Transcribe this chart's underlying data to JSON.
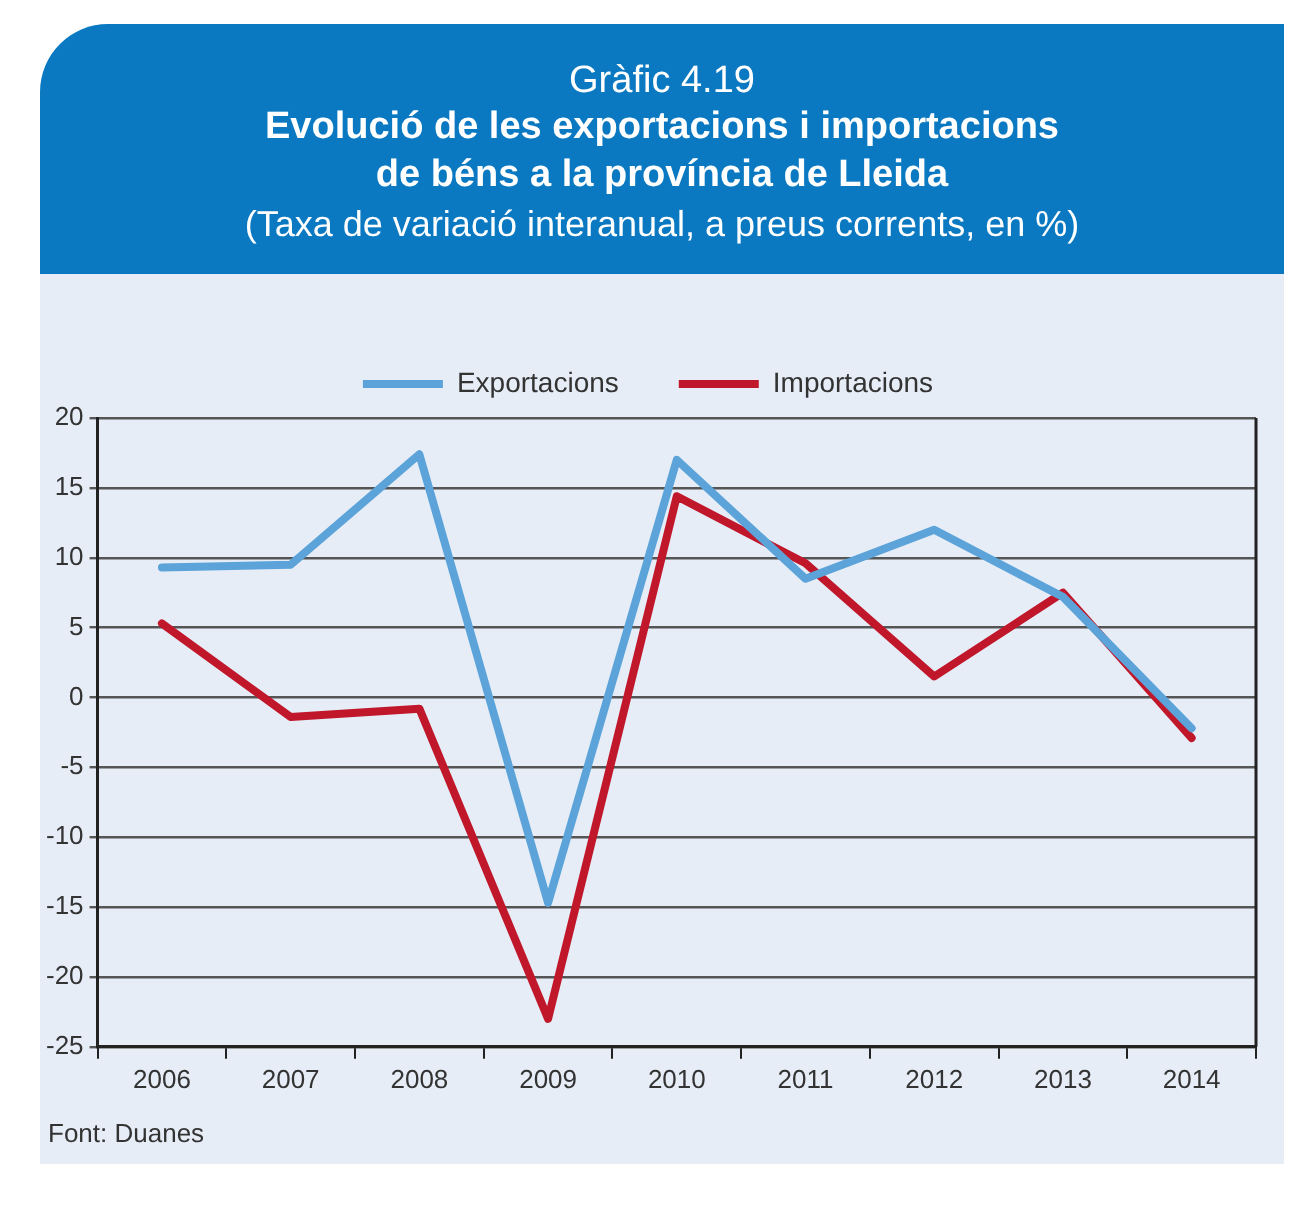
{
  "chart_data": {
    "type": "line",
    "title": "Evolució de les exportacions i importacions de béns a la província de Lleida",
    "subtitle": "(Taxa de variació interanual, a preus corrents, en %)",
    "annotations": [
      "Gràfic 4.19",
      "Font: Duanes"
    ],
    "categories": [
      "2006",
      "2007",
      "2008",
      "2009",
      "2010",
      "2011",
      "2012",
      "2013",
      "2014"
    ],
    "series": [
      {
        "name": "Exportacions",
        "color": "#5ba3d9",
        "values": [
          9.3,
          9.5,
          17.4,
          -14.7,
          17.0,
          8.5,
          12.0,
          7.2,
          -2.2
        ]
      },
      {
        "name": "Importacions",
        "color": "#c0172b",
        "values": [
          5.3,
          -1.4,
          -0.8,
          -23.0,
          14.4,
          9.6,
          1.5,
          7.5,
          -2.9
        ]
      }
    ],
    "ylim": [
      -25,
      20
    ],
    "yticks": [
      -25,
      -20,
      -15,
      -10,
      -5,
      0,
      5,
      10,
      15,
      20
    ],
    "grid": "y",
    "legend": "top",
    "marker": "none",
    "line_style": "solid"
  }
}
